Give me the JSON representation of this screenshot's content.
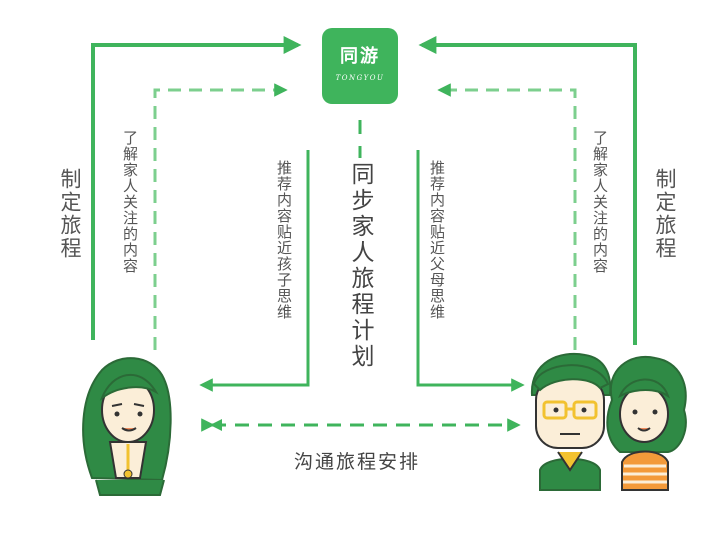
{
  "logo": {
    "name_cn": "同游",
    "name_en": "TONGYOU"
  },
  "center_title": "同步家人旅程计划",
  "left_outer_label": "制定旅程",
  "right_outer_label": "制定旅程",
  "left_dashed_label": "了解家人关注的内容",
  "right_dashed_label": "了解家人关注的内容",
  "left_inner_label": "推荐内容贴近孩子思维",
  "right_inner_label": "推荐内容贴近父母思维",
  "bottom_label": "沟通旅程安排",
  "colors": {
    "accent": "#3fb45c",
    "accent_light": "#7ccf8e",
    "dark": "#2f7a3e",
    "skin": "#fbeed8",
    "yellow": "#f2c230",
    "orange": "#f39a3a"
  },
  "icons": {
    "child": "girl-avatar",
    "parents": "parents-avatar"
  }
}
